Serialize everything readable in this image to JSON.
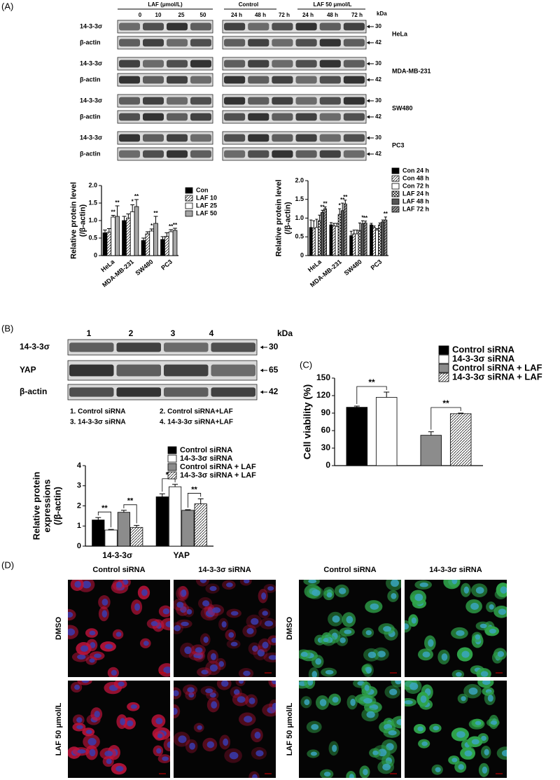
{
  "panel_labels": [
    "(A)",
    "(B)",
    "(C)",
    "(D)"
  ],
  "blot_a": {
    "laf_header": "LAF (μmol/L)",
    "doses": [
      "0",
      "10",
      "25",
      "50"
    ],
    "control_header": "Control",
    "laf50_header": "LAF 50 μmol/L",
    "times": [
      "24 h",
      "48 h",
      "72 h",
      "24 h",
      "48 h",
      "72 h"
    ],
    "kda": "kDa",
    "rows": [
      {
        "label": "14-3-3σ",
        "marker": "30"
      },
      {
        "label": "β-actin",
        "marker": "42"
      }
    ],
    "cell_lines": [
      "HeLa",
      "MDA-MB-231",
      "SW480",
      "PC3"
    ]
  },
  "blot_b": {
    "lanes": [
      "1",
      "2",
      "3",
      "4"
    ],
    "kda": "kDa",
    "rows": [
      {
        "label": "14-3-3σ",
        "marker": "30"
      },
      {
        "label": "YAP",
        "marker": "65"
      },
      {
        "label": "β-actin",
        "marker": "42"
      }
    ],
    "key": [
      "1. Control siRNA",
      "2. Control siRNA+LAF",
      "3. 14-3-3σ siRNA",
      "4. 14-3-3σ siRNA+LAF"
    ]
  },
  "micrographs": {
    "columns": [
      "Control siRNA",
      "14-3-3σ siRNA",
      "Control siRNA",
      "14-3-3σ siRNA"
    ],
    "rows": [
      "DMSO",
      "LAF 50 μmol/L"
    ]
  },
  "chart_data": [
    {
      "type": "bar",
      "ylabel": [
        "Relative protein level",
        "(/β-actin)"
      ],
      "categories": [
        "HeLa",
        "MDA-MB-231",
        "SW480",
        "PC3"
      ],
      "ylim": [
        0,
        2
      ],
      "yticks": [
        0,
        0.5,
        {
          "value": 1,
          "label": "1.0"
        },
        1.5,
        {
          "value": 2,
          "label": "2.0"
        }
      ],
      "series": [
        {
          "name": "Con",
          "color": "#000000",
          "values": [
            0.65,
            1.0,
            0.43,
            0.46
          ],
          "errors": [
            0.08,
            0.12,
            0.07,
            0.08
          ],
          "significance": [
            null,
            null,
            null,
            null
          ]
        },
        {
          "name": "LAF 10",
          "color": "#ffffff",
          "pattern": "hatch",
          "values": [
            0.67,
            1.07,
            0.62,
            0.55
          ],
          "errors": [
            0.1,
            0.12,
            0.06,
            0.1
          ],
          "significance": [
            null,
            null,
            null,
            null
          ]
        },
        {
          "name": "LAF 25",
          "color": "#ffffff",
          "values": [
            1.1,
            1.25,
            0.7,
            0.68
          ],
          "errors": [
            0.05,
            0.2,
            0.06,
            0.06
          ],
          "significance": [
            "**",
            "*",
            "*",
            "**"
          ]
        },
        {
          "name": "LAF 50",
          "color": "#a6a6a6",
          "values": [
            1.12,
            1.4,
            0.92,
            0.72
          ],
          "errors": [
            0.3,
            0.2,
            0.2,
            0.06
          ],
          "significance": [
            "**",
            "**",
            "**",
            "**"
          ]
        }
      ]
    },
    {
      "type": "bar",
      "ylabel": [
        "Relative protein level",
        "(/β-actin)"
      ],
      "categories": [
        "HeLa",
        "MDA-MB-231",
        "SW480",
        "PC3"
      ],
      "ylim": [
        0,
        2
      ],
      "yticks": [
        0,
        0.5,
        {
          "value": 1,
          "label": "1.0"
        },
        1.5,
        {
          "value": 2,
          "label": "2.0"
        }
      ],
      "series": [
        {
          "name": "Con 24 h",
          "color": "#000000",
          "values": [
            0.75,
            0.82,
            0.53,
            0.82
          ],
          "errors": [
            0.2,
            0.06,
            0.12,
            0.04
          ],
          "significance": [
            null,
            null,
            null,
            null
          ]
        },
        {
          "name": "Con 48 h",
          "color": "#ffffff",
          "pattern": "hatch",
          "values": [
            0.73,
            0.8,
            0.58,
            0.75
          ],
          "errors": [
            0.2,
            0.06,
            0.1,
            0.04
          ],
          "significance": [
            null,
            null,
            null,
            null
          ]
        },
        {
          "name": "Con 72 h",
          "color": "#ffffff",
          "values": [
            0.75,
            0.78,
            0.58,
            0.68
          ],
          "errors": [
            0.22,
            0.08,
            0.1,
            0.04
          ],
          "significance": [
            null,
            null,
            null,
            null
          ]
        },
        {
          "name": "LAF 24 h",
          "color": "#ffffff",
          "pattern": "cross",
          "values": [
            0.93,
            1.1,
            0.67,
            0.82
          ],
          "errors": [
            0.15,
            0.15,
            0.2,
            0.05
          ],
          "significance": [
            null,
            "*",
            null,
            null
          ]
        },
        {
          "name": "LAF 48 h",
          "color": "#555555",
          "values": [
            1.15,
            1.2,
            0.85,
            0.9
          ],
          "errors": [
            0.06,
            0.2,
            0.08,
            0.05
          ],
          "significance": [
            "**",
            "**",
            "*",
            null
          ]
        },
        {
          "name": "LAF 72 h",
          "color": "#9a9a9a",
          "pattern": "hatch",
          "values": [
            1.25,
            1.38,
            0.87,
            0.95
          ],
          "errors": [
            0.05,
            0.1,
            0.05,
            0.08
          ],
          "significance": [
            "**",
            "**",
            "**",
            "**"
          ]
        }
      ]
    },
    {
      "type": "bar",
      "ylabel": [
        "Relative protein",
        "expressions",
        "(/β-actin)"
      ],
      "categories": [
        "14-3-3σ",
        "YAP"
      ],
      "ylim": [
        0,
        4
      ],
      "yticks": [
        0,
        1,
        2,
        3,
        4
      ],
      "brackets": [
        "**",
        "**",
        "**",
        "**"
      ],
      "series": [
        {
          "name": "Control siRNA",
          "color": "#000000",
          "values": [
            1.3,
            2.45
          ],
          "errors": [
            0.12,
            0.15
          ]
        },
        {
          "name": "14-3-3σ siRNA",
          "color": "#ffffff",
          "values": [
            0.8,
            2.95
          ],
          "errors": [
            0.03,
            0.12
          ]
        },
        {
          "name": "Control siRNA + LAF",
          "color": "#8c8c8c",
          "values": [
            1.68,
            1.78
          ],
          "errors": [
            0.1,
            0.03
          ]
        },
        {
          "name": "14-3-3σ siRNA + LAF",
          "color": "#ffffff",
          "pattern": "hatch",
          "values": [
            0.93,
            2.1
          ],
          "errors": [
            0.1,
            0.25
          ]
        }
      ]
    },
    {
      "type": "bar",
      "ylabel": [
        "Cell viability (%)"
      ],
      "categories": [
        null,
        null
      ],
      "ylim": [
        0,
        150
      ],
      "yticks": [
        0,
        30,
        60,
        90,
        120,
        150
      ],
      "brackets": [
        "**",
        "**"
      ],
      "series": [
        {
          "name": "Control siRNA",
          "color": "#000000",
          "values": [
            100,
            null
          ],
          "errors": [
            2,
            null
          ]
        },
        {
          "name": "14-3-3σ siRNA",
          "color": "#ffffff",
          "values": [
            117,
            null
          ],
          "errors": [
            9,
            null
          ]
        },
        {
          "name": "Control siRNA + LAF",
          "color": "#8c8c8c",
          "values": [
            null,
            52
          ],
          "errors": [
            null,
            6
          ]
        },
        {
          "name": "14-3-3σ siRNA + LAF",
          "color": "#ffffff",
          "pattern": "hatch",
          "values": [
            null,
            89
          ],
          "errors": [
            null,
            1
          ]
        }
      ]
    }
  ]
}
